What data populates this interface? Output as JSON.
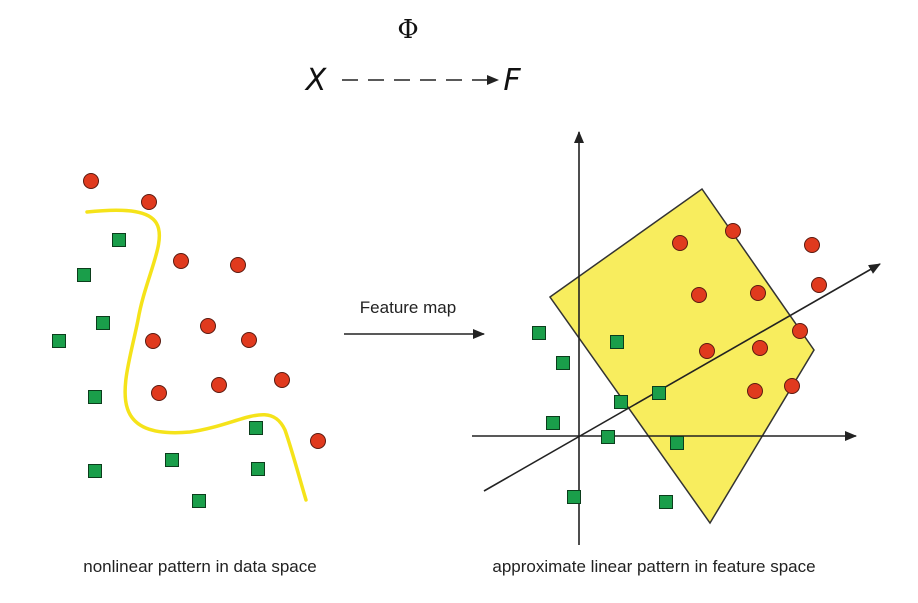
{
  "mapping": {
    "phi": "Φ",
    "source": "X",
    "target": "F"
  },
  "arrow_label": "Feature map",
  "captions": {
    "left": "nonlinear pattern in data space",
    "right": "approximate linear pattern in feature space"
  },
  "colors": {
    "red_point": "#e03a1e",
    "green_point": "#1a9e4a",
    "boundary_curve": "#f5e31a",
    "polygon_fill": "#f7e93a",
    "axis": "#222222"
  },
  "icons": {
    "red": "circle",
    "green": "square"
  }
}
